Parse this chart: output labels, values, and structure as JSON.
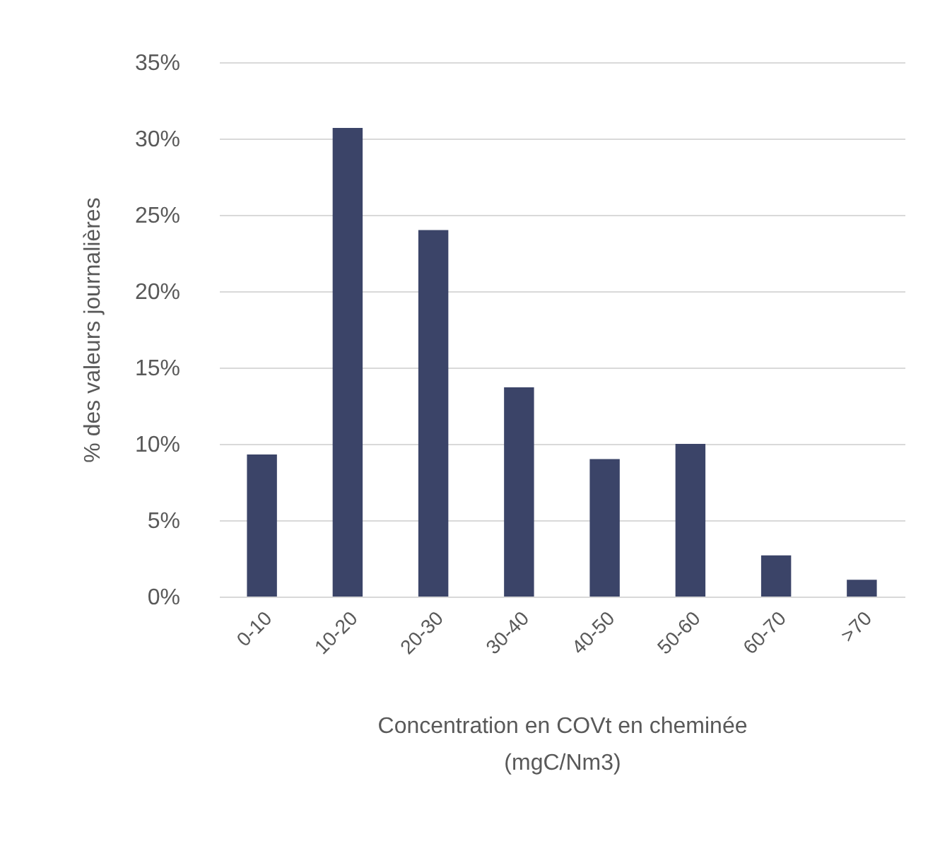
{
  "chart_data": {
    "type": "bar",
    "xlabel": "Concentration en COVt en cheminée\n(mgC/Nm3)",
    "ylabel": "% des valeurs journalières",
    "categories": [
      "0-10",
      "10-20",
      "20-30",
      "30-40",
      "40-50",
      "50-60",
      "60-70",
      ">70"
    ],
    "values": [
      9.3,
      30.7,
      24.0,
      13.7,
      9.0,
      10.0,
      2.7,
      1.1
    ],
    "color": "#3b4468",
    "ylim": [
      0,
      35
    ],
    "yticks": [
      {
        "value": 0,
        "label": "0%"
      },
      {
        "value": 5,
        "label": "5%"
      },
      {
        "value": 10,
        "label": "10%"
      },
      {
        "value": 15,
        "label": "15%"
      },
      {
        "value": 20,
        "label": "20%"
      },
      {
        "value": 25,
        "label": "25%"
      },
      {
        "value": 30,
        "label": "30%"
      },
      {
        "value": 35,
        "label": "35%"
      }
    ],
    "grid": true
  }
}
